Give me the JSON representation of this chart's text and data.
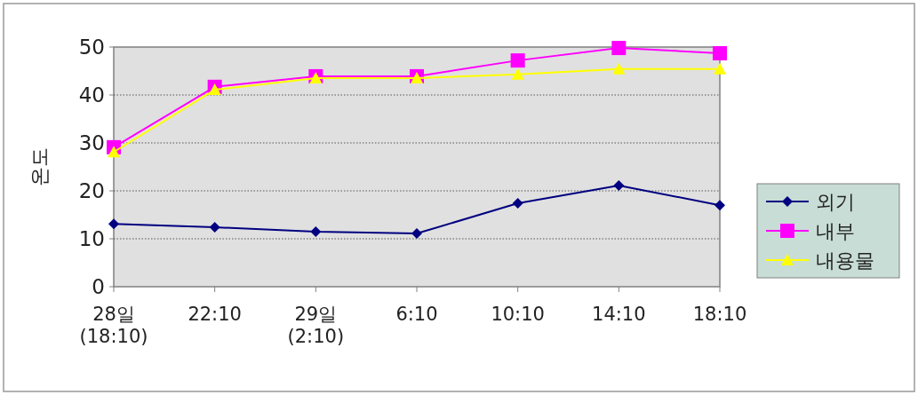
{
  "chart_data": {
    "type": "line",
    "ylabel": "온도",
    "categories": [
      "28일\n(18:10)",
      "22:10",
      "29일\n(2:10)",
      "6:10",
      "10:10",
      "14:10",
      "18:10"
    ],
    "series": [
      {
        "name": "외기",
        "color": "#000080",
        "marker": "diamond",
        "values": [
          13.1,
          12.4,
          11.5,
          11.1,
          17.4,
          21.1,
          17.0
        ]
      },
      {
        "name": "내부",
        "color": "#ff00ff",
        "marker": "square",
        "values": [
          29.1,
          41.7,
          43.9,
          43.9,
          47.2,
          49.8,
          48.7
        ]
      },
      {
        "name": "내용물",
        "color": "#ffff00",
        "marker": "triangle",
        "values": [
          28.1,
          41.1,
          43.5,
          43.5,
          44.3,
          45.4,
          45.4
        ]
      }
    ],
    "ylim": [
      0,
      50
    ],
    "yticks": [
      0,
      10,
      20,
      30,
      40,
      50
    ],
    "grid": "y",
    "legend": "right"
  }
}
